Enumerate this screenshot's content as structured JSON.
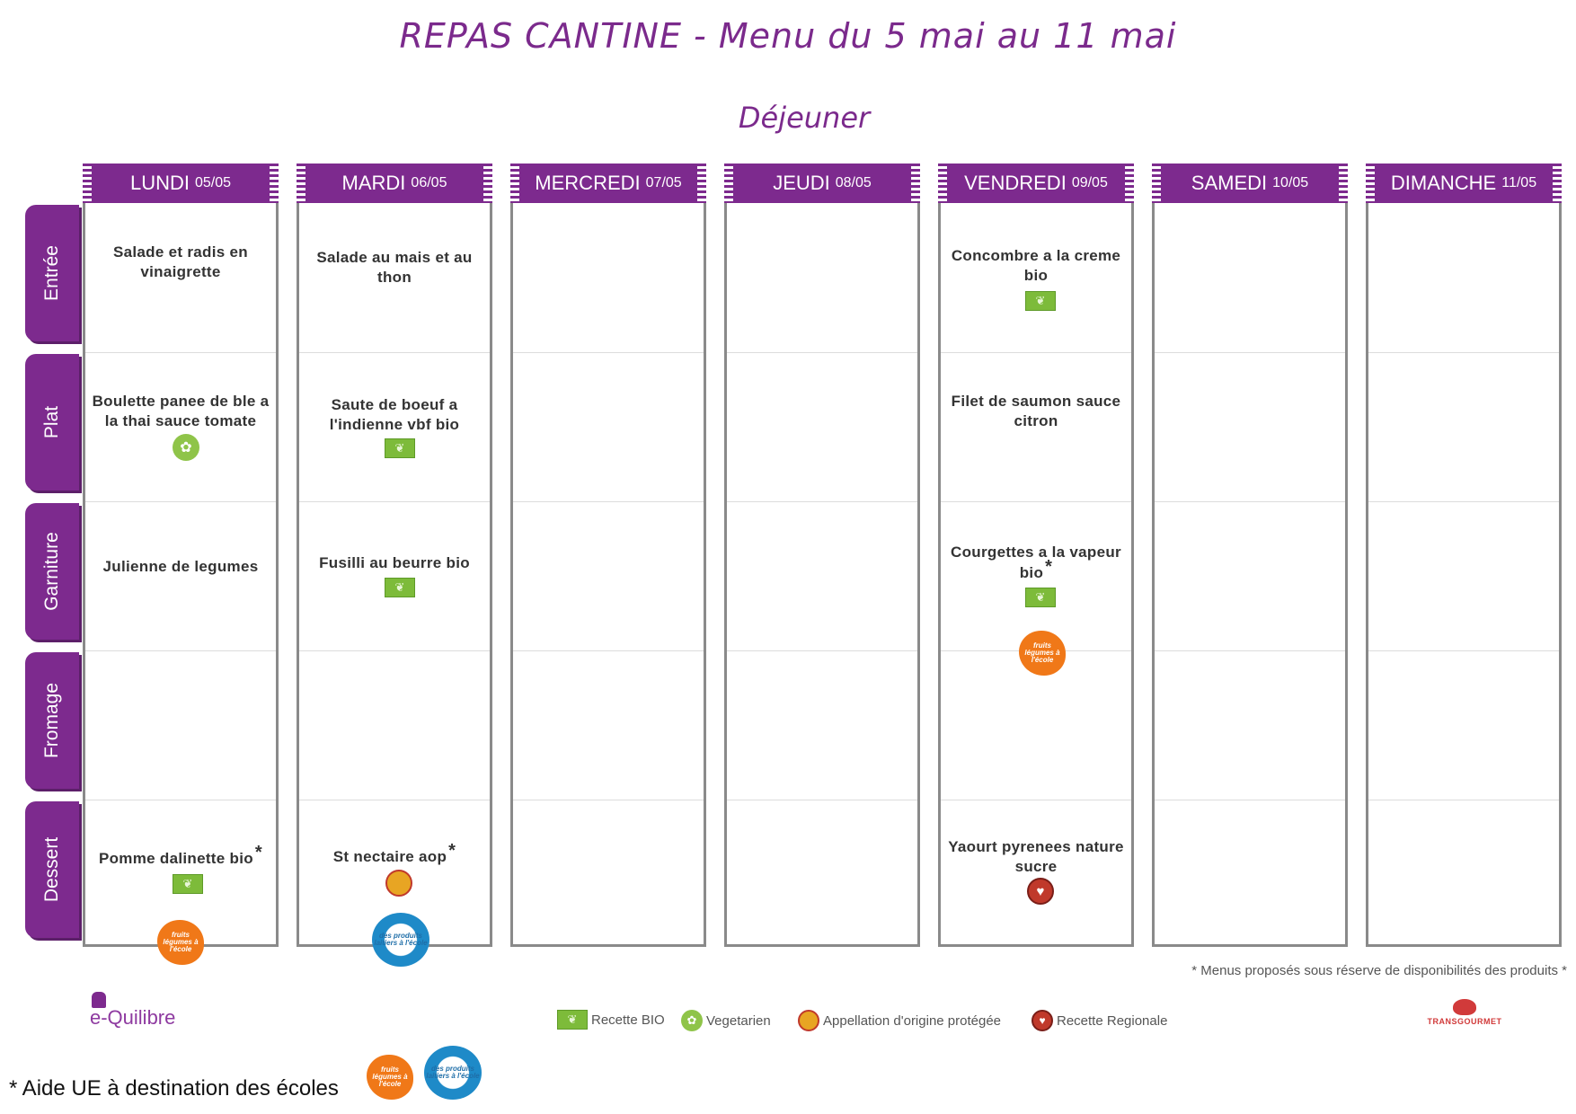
{
  "title": "REPAS CANTINE - Menu du 5 mai au 11 mai",
  "subtitle": "Déjeuner",
  "categories": [
    "Entrée",
    "Plat",
    "Garniture",
    "Fromage",
    "Dessert"
  ],
  "days": [
    {
      "name": "LUNDI",
      "date": "05/05"
    },
    {
      "name": "MARDI",
      "date": "06/05"
    },
    {
      "name": "MERCREDI",
      "date": "07/05"
    },
    {
      "name": "JEUDI",
      "date": "08/05"
    },
    {
      "name": "VENDREDI",
      "date": "09/05"
    },
    {
      "name": "SAMEDI",
      "date": "10/05"
    },
    {
      "name": "DIMANCHE",
      "date": "11/05"
    }
  ],
  "dishes": {
    "lundi_entree": "Salade et radis en vinaigrette",
    "lundi_plat": "Boulette panee de ble a la thai sauce tomate",
    "lundi_garniture": "Julienne de legumes",
    "lundi_dessert": "Pomme dalinette bio",
    "mardi_entree": "Salade au mais et au thon",
    "mardi_plat": "Saute de boeuf a l'indienne vbf bio",
    "mardi_garniture": "Fusilli au beurre bio",
    "mardi_dessert": "St nectaire aop",
    "vendredi_entree": "Concombre a la creme bio",
    "vendredi_plat": "Filet de saumon sauce citron",
    "vendredi_garniture": "Courgettes a la vapeur bio",
    "vendredi_dessert": "Yaourt pyrenees nature sucre",
    "star": "*"
  },
  "logos": {
    "fruits": "fruits légumes à l'école",
    "dairy": "des produits laitiers à l'école"
  },
  "note": "* Menus proposés sous réserve de disponibilités des produits *",
  "legend": {
    "bio": "Recette BIO",
    "veg": "Vegetarien",
    "aop": "Appellation d'origine protégée",
    "regional": "Recette Regionale"
  },
  "brand_left": "e-Quilibre",
  "brand_right": "TRANSGOURMET",
  "aid_text": "* Aide UE à destination des écoles",
  "colors": {
    "accent": "#7d2a8e",
    "bio": "#7dbb3a",
    "fruit": "#f07818",
    "dairy": "#1e8ac8"
  },
  "icons": {
    "bio": "bio-leaf-icon",
    "veg": "vegetarian-icon",
    "aop": "aop-icon",
    "regional": "regional-icon"
  }
}
